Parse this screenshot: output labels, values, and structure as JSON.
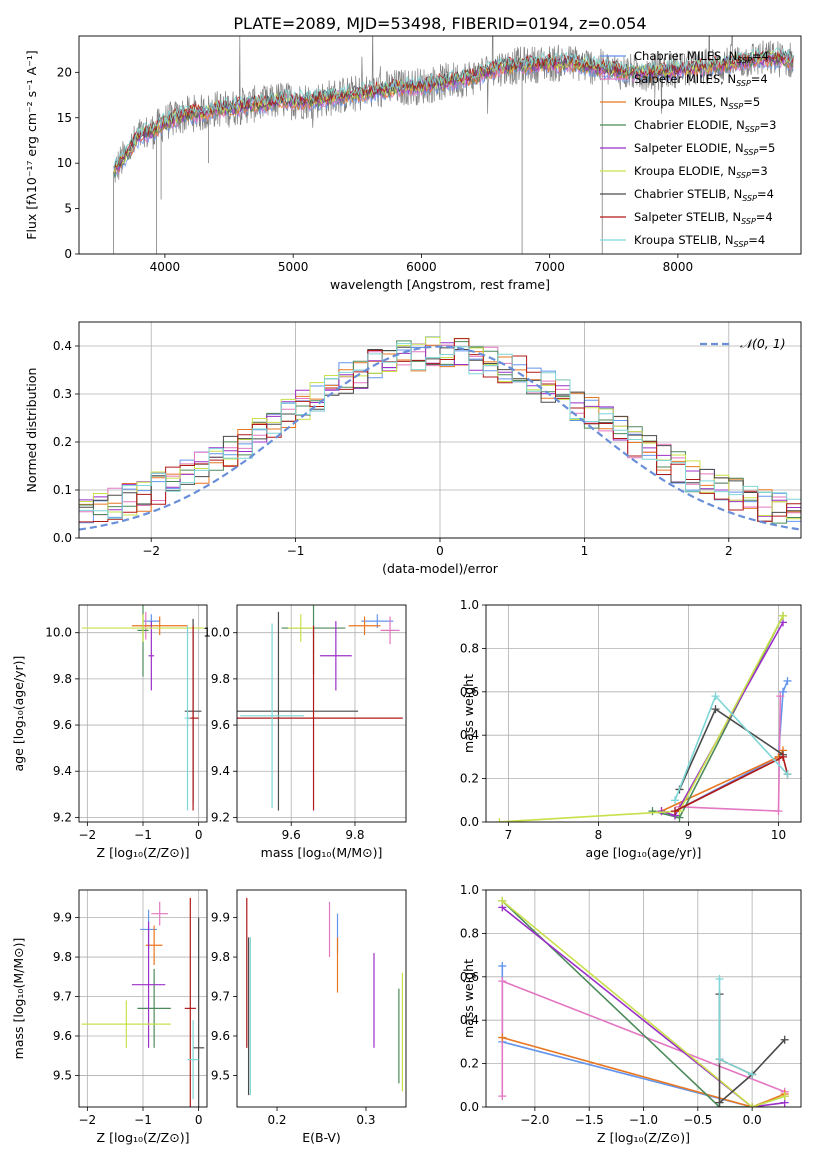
{
  "figure": {
    "title": "PLATE=2089, MJD=53498, FIBERID=0194, z=0.054"
  },
  "colors": {
    "Chabrier MILES": "#6495ed",
    "Salpeter MILES": "#e377c2",
    "Kroupa MILES": "#e87722",
    "Chabrier ELODIE": "#4d8a5a",
    "Salpeter ELODIE": "#9b30c8",
    "Kroupa ELODIE": "#c8e04a",
    "Chabrier STELIB": "#4a4a4a",
    "Salpeter STELIB": "#b01818",
    "Kroupa STELIB": "#7fd6d6",
    "data": "#808080",
    "normal": "#6a8fd8",
    "grid": "#b0b0b0"
  },
  "chart_data": [
    {
      "id": "spectrum",
      "type": "line",
      "title": "PLATE=2089, MJD=53498, FIBERID=0194, z=0.054",
      "xlabel": "wavelength [Angstrom, rest frame]",
      "ylabel": "Flux [fλ10⁻¹⁷ erg cm⁻² s⁻¹ A⁻¹]",
      "xlim": [
        3330,
        8960
      ],
      "ylim": [
        0,
        24
      ],
      "xticks": [
        4000,
        5000,
        6000,
        7000,
        8000
      ],
      "yticks": [
        0,
        5,
        10,
        15,
        20
      ],
      "grid": false,
      "legend_position": "top-right",
      "legend": [
        {
          "model": "Chabrier MILES",
          "imf": "Chabrier",
          "lib": "MILES",
          "n": "4"
        },
        {
          "model": "Salpeter MILES",
          "imf": "Salpeter",
          "lib": "MILES",
          "n": "4"
        },
        {
          "model": "Kroupa MILES",
          "imf": "Kroupa",
          "lib": "MILES",
          "n": "5"
        },
        {
          "model": "Chabrier ELODIE",
          "imf": "Chabrier",
          "lib": "ELODIE",
          "n": "3"
        },
        {
          "model": "Salpeter ELODIE",
          "imf": "Salpeter",
          "lib": "ELODIE",
          "n": "5"
        },
        {
          "model": "Kroupa ELODIE",
          "imf": "Kroupa",
          "lib": "ELODIE",
          "n": "3"
        },
        {
          "model": "Chabrier STELIB",
          "imf": "Chabrier",
          "lib": "STELIB",
          "n": "4"
        },
        {
          "model": "Salpeter STELIB",
          "imf": "Salpeter",
          "lib": "STELIB",
          "n": "4"
        },
        {
          "model": "Kroupa STELIB",
          "imf": "Kroupa",
          "lib": "STELIB",
          "n": "4"
        }
      ],
      "continuum": {
        "x": [
          3600,
          3700,
          3800,
          3900,
          4000,
          4100,
          4200,
          4300,
          4400,
          4500,
          4600,
          4700,
          4800,
          4900,
          5000,
          5200,
          5400,
          5600,
          5800,
          6000,
          6200,
          6400,
          6600,
          6800,
          7000,
          7200,
          7400,
          7600,
          7800,
          8000,
          8200,
          8400,
          8600,
          8800,
          8900
        ],
        "y": [
          9,
          11,
          13,
          13.5,
          14.5,
          15,
          15.5,
          15.5,
          16,
          16,
          16.3,
          16.5,
          16.5,
          17,
          16.8,
          17,
          17.5,
          17.8,
          18.3,
          18.5,
          19,
          19.5,
          20.5,
          20.8,
          21,
          21,
          20.5,
          20,
          20,
          20.3,
          20.5,
          21,
          21.5,
          21.5,
          21.3
        ]
      },
      "features": [
        {
          "x": 3935,
          "y": 0
        },
        {
          "x": 3970,
          "y": 6
        },
        {
          "x": 4340,
          "y": 10
        },
        {
          "x": 6785,
          "y": 0
        },
        {
          "x": 7410,
          "y": 0
        },
        {
          "x": 3600,
          "y": 0
        }
      ]
    },
    {
      "id": "residuals",
      "type": "step",
      "xlabel": "(data-model)/error",
      "ylabel": "Normed distribution",
      "xlim": [
        -2.5,
        2.5
      ],
      "ylim": [
        0,
        0.45
      ],
      "xticks": [
        -2,
        -1,
        0,
        1,
        2
      ],
      "yticks": [
        0.0,
        0.1,
        0.2,
        0.3,
        0.4
      ],
      "grid": true,
      "legend_position": "top-right",
      "normal_label": "𝒩(0, 1)"
    },
    {
      "id": "z_age",
      "type": "errorbar",
      "xlabel": "Z [log₁₀(Z/Z⊙)]",
      "ylabel": "age  [log₁₀(age/yr)]",
      "xlim": [
        -2.15,
        0.15
      ],
      "ylim": [
        9.18,
        10.12
      ],
      "xticks": [
        -2,
        -1,
        0
      ],
      "yticks": [
        9.2,
        9.4,
        9.6,
        9.8,
        10.0
      ],
      "grid": true,
      "points": [
        {
          "model": "Chabrier MILES",
          "x": -0.85,
          "xerr": 0.15,
          "y": 10.05,
          "yerr": 0.03
        },
        {
          "model": "Salpeter MILES",
          "x": -0.95,
          "xerr": 0.1,
          "y": 10.03,
          "yerr": 0.06
        },
        {
          "model": "Kroupa MILES",
          "x": -0.7,
          "xerr": 0.5,
          "y": 10.03,
          "yerr": 0.04
        },
        {
          "model": "Chabrier ELODIE",
          "x": -1.0,
          "xerr": 0.1,
          "y": 10.01,
          "yerr": 0.2
        },
        {
          "model": "Salpeter ELODIE",
          "x": -0.85,
          "xerr": 0.05,
          "y": 9.9,
          "yerr": 0.15
        },
        {
          "model": "Kroupa ELODIE",
          "x": -1.0,
          "xerr": 1.1,
          "y": 10.02,
          "yerr": 0.06
        },
        {
          "model": "Chabrier STELIB",
          "x": -0.1,
          "xerr": 0.15,
          "y": 9.66,
          "yerr": 0.4
        },
        {
          "model": "Salpeter STELIB",
          "x": -0.1,
          "xerr": 0.1,
          "y": 9.63,
          "yerr": 0.4
        },
        {
          "model": "Kroupa STELIB",
          "x": -0.2,
          "xerr": 0.05,
          "y": 9.63,
          "yerr": 0.4
        }
      ]
    },
    {
      "id": "mass_age",
      "type": "errorbar",
      "xlabel": "mass [log₁₀(M/M⊙)]",
      "ylabel": "",
      "xlim": [
        9.43,
        9.96
      ],
      "ylim": [
        9.18,
        10.12
      ],
      "xticks": [
        9.6,
        9.8
      ],
      "yticks": [
        9.2,
        9.4,
        9.6,
        9.8,
        10.0
      ],
      "grid": true,
      "points": [
        {
          "model": "Chabrier MILES",
          "x": 9.87,
          "xerr": 0.05,
          "y": 10.05,
          "yerr": 0.03
        },
        {
          "model": "Salpeter MILES",
          "x": 9.91,
          "xerr": 0.03,
          "y": 10.01,
          "yerr": 0.06
        },
        {
          "model": "Kroupa MILES",
          "x": 9.83,
          "xerr": 0.05,
          "y": 10.03,
          "yerr": 0.04
        },
        {
          "model": "Chabrier ELODIE",
          "x": 9.67,
          "xerr": 0.1,
          "y": 10.02,
          "yerr": 0.2
        },
        {
          "model": "Salpeter ELODIE",
          "x": 9.74,
          "xerr": 0.05,
          "y": 9.9,
          "yerr": 0.15
        },
        {
          "model": "Kroupa ELODIE",
          "x": 9.63,
          "xerr": 0.04,
          "y": 10.02,
          "yerr": 0.06
        },
        {
          "model": "Chabrier STELIB",
          "x": 9.56,
          "xerr": 0.25,
          "y": 9.66,
          "yerr": 0.43
        },
        {
          "model": "Salpeter STELIB",
          "x": 9.67,
          "xerr": 0.28,
          "y": 9.63,
          "yerr": 0.4
        },
        {
          "model": "Kroupa STELIB",
          "x": 9.54,
          "xerr": 0.1,
          "y": 9.64,
          "yerr": 0.4
        }
      ]
    },
    {
      "id": "weight_age",
      "type": "line",
      "xlabel": "age  [log₁₀(age/yr)]",
      "ylabel": "mass weight",
      "xlim": [
        6.75,
        10.25
      ],
      "ylim": [
        0,
        1
      ],
      "xticks": [
        7,
        8,
        9,
        10
      ],
      "yticks": [
        0.0,
        0.2,
        0.4,
        0.6,
        0.8,
        1.0
      ],
      "grid": true,
      "series": [
        {
          "model": "Chabrier MILES",
          "x": [
            8.85,
            10.0,
            10.05,
            10.1
          ],
          "y": [
            0.05,
            0.3,
            0.6,
            0.65
          ]
        },
        {
          "model": "Salpeter MILES",
          "x": [
            8.9,
            10.0,
            10.02
          ],
          "y": [
            0.07,
            0.05,
            0.58
          ]
        },
        {
          "model": "Kroupa MILES",
          "x": [
            8.7,
            10.0,
            10.05
          ],
          "y": [
            0.05,
            0.3,
            0.33
          ]
        },
        {
          "model": "Chabrier ELODIE",
          "x": [
            8.6,
            8.9,
            10.05
          ],
          "y": [
            0.05,
            0.02,
            0.95
          ]
        },
        {
          "model": "Salpeter ELODIE",
          "x": [
            8.7,
            8.85,
            10.05
          ],
          "y": [
            0.05,
            0.03,
            0.92
          ]
        },
        {
          "model": "Kroupa ELODIE",
          "x": [
            6.9,
            8.9,
            10.05
          ],
          "y": [
            0.0,
            0.05,
            0.95
          ]
        },
        {
          "model": "Chabrier STELIB",
          "x": [
            8.9,
            9.3,
            10.05
          ],
          "y": [
            0.15,
            0.52,
            0.31
          ]
        },
        {
          "model": "Salpeter STELIB",
          "x": [
            8.85,
            10.05,
            10.1
          ],
          "y": [
            0.05,
            0.3,
            0.22
          ]
        },
        {
          "model": "Kroupa STELIB",
          "x": [
            8.85,
            9.3,
            10.1
          ],
          "y": [
            0.1,
            0.58,
            0.22
          ]
        }
      ]
    },
    {
      "id": "z_mass",
      "type": "errorbar",
      "xlabel": "Z [log₁₀(Z/Z⊙)]",
      "ylabel": "mass [log₁₀(M/M⊙)]",
      "xlim": [
        -2.15,
        0.15
      ],
      "ylim": [
        9.42,
        9.97
      ],
      "xticks": [
        -2,
        -1,
        0
      ],
      "yticks": [
        9.5,
        9.6,
        9.7,
        9.8,
        9.9
      ],
      "grid": true,
      "points": [
        {
          "model": "Chabrier MILES",
          "x": -0.9,
          "xerr": 0.15,
          "y": 9.87,
          "yerr": 0.05
        },
        {
          "model": "Salpeter MILES",
          "x": -0.7,
          "xerr": 0.15,
          "y": 9.91,
          "yerr": 0.03
        },
        {
          "model": "Kroupa MILES",
          "x": -0.8,
          "xerr": 0.15,
          "y": 9.83,
          "yerr": 0.05
        },
        {
          "model": "Chabrier ELODIE",
          "x": -0.8,
          "xerr": 0.3,
          "y": 9.67,
          "yerr": 0.1
        },
        {
          "model": "Salpeter ELODIE",
          "x": -0.9,
          "xerr": 0.3,
          "y": 9.73,
          "yerr": 0.16
        },
        {
          "model": "Kroupa ELODIE",
          "x": -1.3,
          "xerr": 0.8,
          "y": 9.63,
          "yerr": 0.06
        },
        {
          "model": "Chabrier STELIB",
          "x": 0.0,
          "xerr": 0.1,
          "y": 9.57,
          "yerr": 0.33
        },
        {
          "model": "Salpeter STELIB",
          "x": -0.15,
          "xerr": 0.1,
          "y": 9.67,
          "yerr": 0.28
        },
        {
          "model": "Kroupa STELIB",
          "x": -0.1,
          "xerr": 0.1,
          "y": 9.54,
          "yerr": 0.1
        }
      ]
    },
    {
      "id": "ebv_mass",
      "type": "errorbar",
      "xlabel": "E(B-V)",
      "ylabel": "",
      "xlim": [
        0.155,
        0.345
      ],
      "ylim": [
        9.42,
        9.97
      ],
      "xticks": [
        0.2,
        0.3
      ],
      "yticks": [
        9.5,
        9.6,
        9.7,
        9.8,
        9.9
      ],
      "grid": false,
      "points": [
        {
          "model": "Chabrier MILES",
          "x": 0.268,
          "yerr": 0.05,
          "y": 9.86
        },
        {
          "model": "Salpeter MILES",
          "x": 0.259,
          "yerr": 0.07,
          "y": 9.87
        },
        {
          "model": "Kroupa MILES",
          "x": 0.268,
          "yerr": 0.07,
          "y": 9.78
        },
        {
          "model": "Chabrier ELODIE",
          "x": 0.337,
          "yerr": 0.12,
          "y": 9.6
        },
        {
          "model": "Salpeter ELODIE",
          "x": 0.309,
          "yerr": 0.12,
          "y": 9.69
        },
        {
          "model": "Kroupa ELODIE",
          "x": 0.341,
          "yerr": 0.15,
          "y": 9.61
        },
        {
          "model": "Chabrier STELIB",
          "x": 0.168,
          "yerr": 0.2,
          "y": 9.65
        },
        {
          "model": "Salpeter STELIB",
          "x": 0.166,
          "yerr": 0.19,
          "y": 9.76
        },
        {
          "model": "Kroupa STELIB",
          "x": 0.17,
          "yerr": 0.2,
          "y": 9.65
        }
      ]
    },
    {
      "id": "weight_z",
      "type": "line",
      "xlabel": "Z [log₁₀(Z/Z⊙)]",
      "ylabel": "mass weight",
      "xlim": [
        -2.45,
        0.45
      ],
      "ylim": [
        0,
        1
      ],
      "xticks": [
        -2.0,
        -1.5,
        -1.0,
        -0.5,
        0.0
      ],
      "yticks": [
        0.0,
        0.2,
        0.4,
        0.6,
        0.8,
        1.0
      ],
      "grid": true,
      "series": [
        {
          "model": "Chabrier MILES",
          "x": [
            -2.3,
            -2.3,
            0.0,
            0.3
          ],
          "y": [
            0.65,
            0.3,
            0.0,
            0.05
          ]
        },
        {
          "model": "Salpeter MILES",
          "x": [
            -2.3,
            -2.3,
            0.3,
            0.3
          ],
          "y": [
            0.05,
            0.58,
            0.07,
            0.05
          ]
        },
        {
          "model": "Kroupa MILES",
          "x": [
            -2.3,
            0.0,
            0.3
          ],
          "y": [
            0.32,
            0.0,
            0.06
          ]
        },
        {
          "model": "Chabrier ELODIE",
          "x": [
            -2.3,
            -0.3,
            0.0
          ],
          "y": [
            0.95,
            0.0,
            0.0
          ]
        },
        {
          "model": "Salpeter ELODIE",
          "x": [
            -2.3,
            0.0,
            0.3
          ],
          "y": [
            0.92,
            0.0,
            0.02
          ]
        },
        {
          "model": "Kroupa ELODIE",
          "x": [
            -2.3,
            0.0,
            0.3
          ],
          "y": [
            0.95,
            0.0,
            0.05
          ]
        },
        {
          "model": "Chabrier STELIB",
          "x": [
            -0.3,
            -0.3,
            0.0,
            0.3
          ],
          "y": [
            0.52,
            0.02,
            0.15,
            0.31
          ]
        },
        {
          "model": "Salpeter STELIB",
          "x": [
            -0.3,
            0.0
          ],
          "y": [
            0.22,
            0.15
          ]
        },
        {
          "model": "Kroupa STELIB",
          "x": [
            -0.3,
            -0.3,
            0.0
          ],
          "y": [
            0.59,
            0.22,
            0.15
          ]
        }
      ]
    }
  ]
}
